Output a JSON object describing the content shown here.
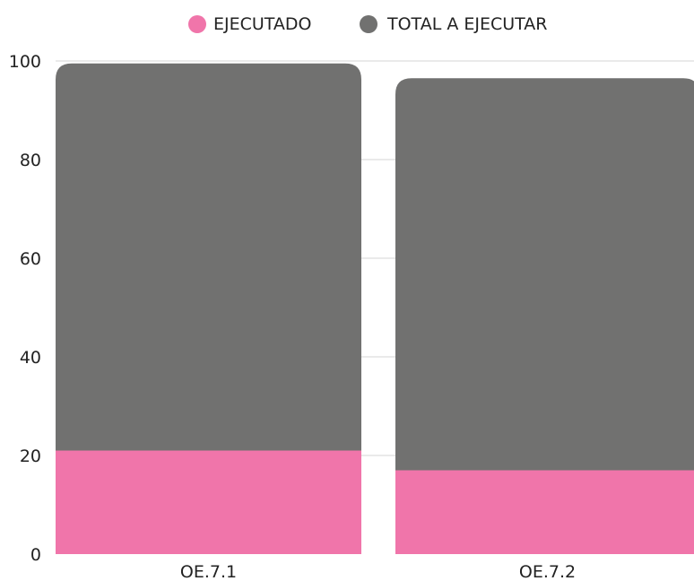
{
  "chart_data": {
    "type": "bar",
    "stacked": true,
    "categories": [
      "OE.7.1",
      "OE.7.2"
    ],
    "series": [
      {
        "name": "EJECUTADO",
        "color": "#F075AA",
        "values": [
          21,
          17
        ]
      },
      {
        "name": "TOTAL A EJECUTAR",
        "color": "#717170",
        "values": [
          78.5,
          79.5
        ]
      }
    ],
    "title": "",
    "xlabel": "",
    "ylabel": "",
    "ylim": [
      0,
      100
    ],
    "yticks": [
      0,
      20,
      40,
      60,
      80,
      100
    ],
    "grid": true,
    "legend_position": "top-center"
  }
}
